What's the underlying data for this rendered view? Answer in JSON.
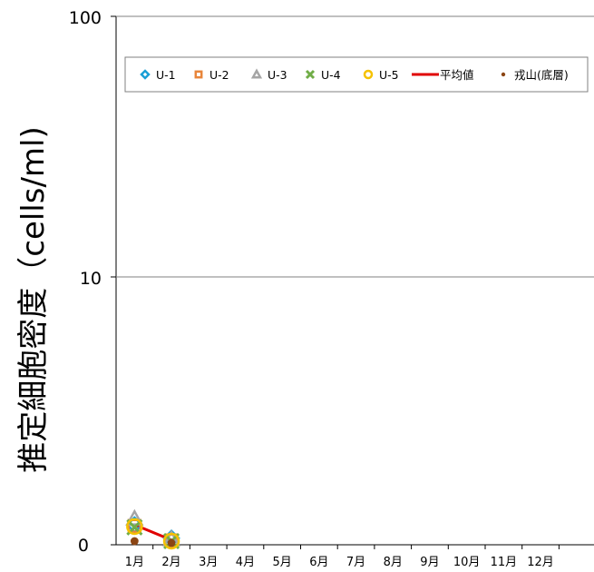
{
  "chart_data": {
    "type": "scatter",
    "yscale": "log-like (0, 10, 100)",
    "ylabel": "推定細胞密度（cells/ml)",
    "yticks": [
      "0",
      "10",
      "100"
    ],
    "categories": [
      "1月",
      "2月",
      "3月",
      "4月",
      "5月",
      "6月",
      "7月",
      "8月",
      "9月",
      "10月",
      "11月",
      "12月"
    ],
    "grid": true,
    "legend_position": "top",
    "series": [
      {
        "name": "U-1",
        "marker": "diamond",
        "color": "#1a9fd6",
        "points": [
          {
            "x": 1.5,
            "y": 0.55
          },
          {
            "x": 2.5,
            "y": 0.18
          }
        ]
      },
      {
        "name": "U-2",
        "marker": "square",
        "color": "#e8853a",
        "points": [
          {
            "x": 1.5,
            "y": 0.52
          },
          {
            "x": 2.5,
            "y": 0.12
          }
        ]
      },
      {
        "name": "U-3",
        "marker": "triangle",
        "color": "#a5a5a5",
        "points": [
          {
            "x": 1.5,
            "y": 0.72
          },
          {
            "x": 2.5,
            "y": 0.15
          }
        ]
      },
      {
        "name": "U-4",
        "marker": "x",
        "color": "#70ad47",
        "points": [
          {
            "x": 1.5,
            "y": 0.48
          },
          {
            "x": 2.5,
            "y": 0.1
          }
        ]
      },
      {
        "name": "U-5",
        "marker": "circle",
        "color": "#f5c200",
        "points": [
          {
            "x": 1.5,
            "y": 0.5
          },
          {
            "x": 2.5,
            "y": 0.1
          }
        ]
      },
      {
        "name": "平均値",
        "marker": "line",
        "color": "#e00000",
        "points": [
          {
            "x": 1.5,
            "y": 0.55
          },
          {
            "x": 2.5,
            "y": 0.13
          }
        ]
      },
      {
        "name": "戎山(底層)",
        "marker": "dot",
        "color": "#8b4513",
        "points": [
          {
            "x": 1.5,
            "y": 0.1
          },
          {
            "x": 2.5,
            "y": 0.05
          }
        ]
      }
    ]
  }
}
